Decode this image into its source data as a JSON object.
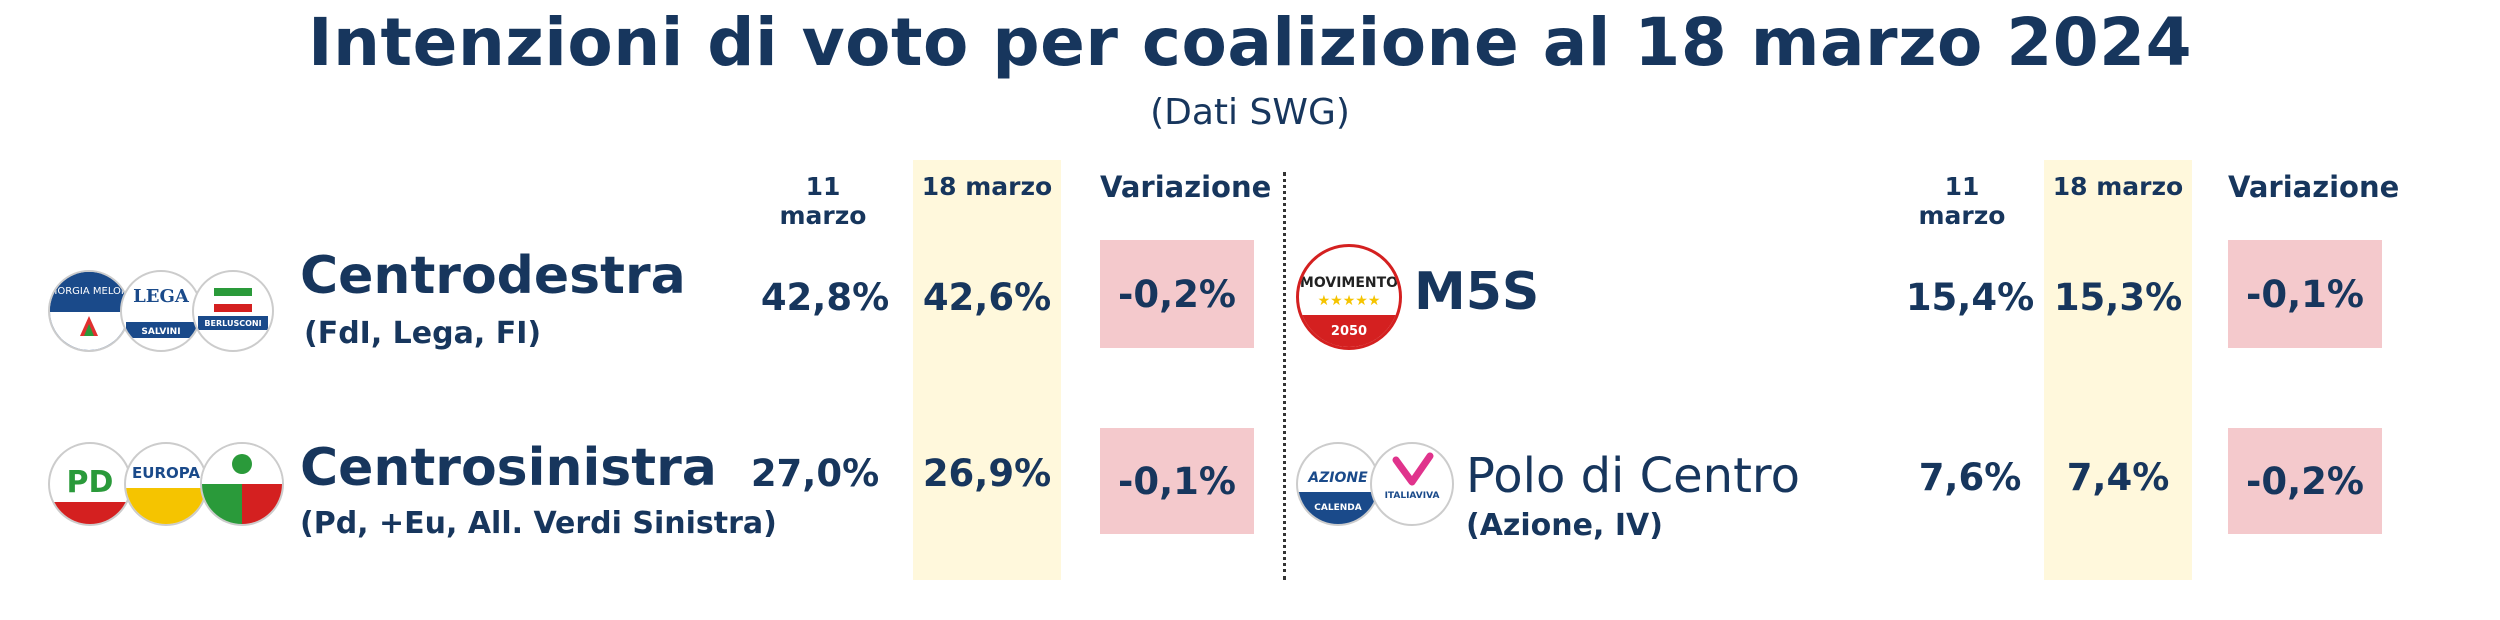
{
  "title": "Intenzioni di voto per coalizione al 18 marzo 2024",
  "subtitle": "(Dati SWG)",
  "headers": {
    "col1": "11 marzo",
    "col2": "18 marzo",
    "col3": "Variazione"
  },
  "rows": [
    {
      "name": "Centrodestra",
      "sub": "(FdI, Lega, FI)",
      "v1": "42,8%",
      "v2": "42,6%",
      "var": "-0,2%",
      "logos": [
        "GIORGIA MELONI",
        "FRATELLI D'ITALIA",
        "LEGA",
        "SALVINI",
        "FORZA ITALIA",
        "BERLUSCONI"
      ]
    },
    {
      "name": "Centrosinistra",
      "sub": "(Pd, +Eu, All. Verdi Sinistra)",
      "v1": "27,0%",
      "v2": "26,9%",
      "var": "-0,1%",
      "logos": [
        "PD",
        "PARTITO DEMOCRATICO",
        "EUROPA",
        "EMMA BONINO",
        "Alleanza Verdi Sinistra"
      ]
    },
    {
      "name": "M5S",
      "sub": "",
      "v1": "15,4%",
      "v2": "15,3%",
      "var": "-0,1%",
      "logos": [
        "MOVIMENTO",
        "2050"
      ]
    },
    {
      "name": "Polo di Centro",
      "sub": "(Azione, IV)",
      "v1": "7,6%",
      "v2": "7,4%",
      "var": "-0,2%",
      "logos": [
        "AZIONE",
        "CALENDA",
        "ITALIAVIVA"
      ]
    }
  ],
  "colors": {
    "text": "#17365d",
    "highlight": "#fff8dc",
    "variation_box": "#f4c9cc"
  }
}
